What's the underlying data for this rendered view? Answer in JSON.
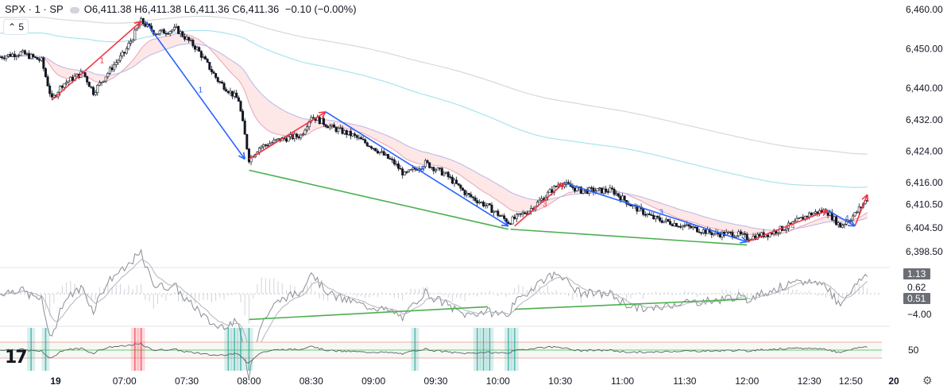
{
  "header": {
    "symbol": "SPX · 1 · SP",
    "open_label": "O",
    "open": "6,411.38",
    "high_label": "H",
    "high": "6,411.38",
    "low_label": "L",
    "low": "6,411.36",
    "close_label": "C",
    "close": "6,411.36",
    "change": "−0.10 (−0.00%)"
  },
  "interval_button": "5",
  "logo": "17",
  "icons": [
    "eye-icon",
    "chevron-up-icon",
    "gear-icon",
    "tradingview-logo-icon"
  ],
  "colors": {
    "bull_arrow": "#f23645",
    "bear_arrow": "#2962ff",
    "divergence": "#4caf50",
    "ema_cloud": "#fde4e4",
    "ema_blue": "#a7e3f0",
    "ema_gray": "#d8d8d8"
  },
  "chart_data": [
    {
      "type": "candlestick",
      "title": "SPX · 1 · SP",
      "y_ticks": [
        "6,460.00",
        "6,450.00",
        "6,440.00",
        "6,432.00",
        "6,424.00",
        "6,416.00",
        "6,410.50",
        "6,404.50",
        "6,398.50"
      ],
      "x_ticks": [
        "19",
        "07:00",
        "07:30",
        "08:00",
        "08:30",
        "09:00",
        "09:30",
        "10:00",
        "10:30",
        "11:00",
        "11:30",
        "12:00",
        "12:30",
        "12:50",
        "20"
      ],
      "price_path": [
        [
          "06:00",
          6448
        ],
        [
          "06:10",
          6449
        ],
        [
          "06:20",
          6447
        ],
        [
          "06:25",
          6437
        ],
        [
          "06:30",
          6441
        ],
        [
          "06:40",
          6444
        ],
        [
          "06:45",
          6439
        ],
        [
          "06:55",
          6446
        ],
        [
          "07:00",
          6449
        ],
        [
          "07:08",
          6457
        ],
        [
          "07:15",
          6454
        ],
        [
          "07:25",
          6455
        ],
        [
          "07:35",
          6450
        ],
        [
          "07:45",
          6442
        ],
        [
          "07:55",
          6437
        ],
        [
          "08:00",
          6422
        ],
        [
          "08:05",
          6425
        ],
        [
          "08:15",
          6427
        ],
        [
          "08:25",
          6428
        ],
        [
          "08:30",
          6433
        ],
        [
          "08:40",
          6430
        ],
        [
          "08:50",
          6428
        ],
        [
          "09:00",
          6425
        ],
        [
          "09:10",
          6421
        ],
        [
          "09:15",
          6418
        ],
        [
          "09:25",
          6421
        ],
        [
          "09:35",
          6418
        ],
        [
          "09:45",
          6413
        ],
        [
          "09:55",
          6410
        ],
        [
          "10:05",
          6406
        ],
        [
          "10:15",
          6409
        ],
        [
          "10:30",
          6416
        ],
        [
          "10:40",
          6414
        ],
        [
          "10:55",
          6414
        ],
        [
          "11:05",
          6410
        ],
        [
          "11:15",
          6407
        ],
        [
          "11:30",
          6405
        ],
        [
          "11:45",
          6403
        ],
        [
          "11:55",
          6403
        ],
        [
          "12:00",
          6402
        ],
        [
          "12:10",
          6403
        ],
        [
          "12:20",
          6405
        ],
        [
          "12:30",
          6408
        ],
        [
          "12:38",
          6409
        ],
        [
          "12:45",
          6405
        ],
        [
          "12:52",
          6408
        ],
        [
          "12:58",
          6412
        ]
      ],
      "wave_arrows": [
        {
          "label": "1",
          "direction": "up",
          "from": [
            "06:25",
            6437
          ],
          "to": [
            "07:08",
            6457
          ]
        },
        {
          "label": "1",
          "direction": "down",
          "from": [
            "07:10",
            6457
          ],
          "to": [
            "07:58",
            6422
          ]
        },
        {
          "label": "1",
          "direction": "up",
          "from": [
            "08:00",
            6422
          ],
          "to": [
            "08:37",
            6434
          ]
        },
        {
          "label": "3",
          "direction": "down",
          "from": [
            "08:37",
            6434
          ],
          "to": [
            "10:05",
            6405
          ]
        },
        {
          "label": "3",
          "direction": "up",
          "from": [
            "10:08",
            6405
          ],
          "to": [
            "10:32",
            6416
          ]
        },
        {
          "label": "3",
          "direction": "down",
          "from": [
            "10:32",
            6416
          ],
          "to": [
            "12:00",
            6401
          ]
        },
        {
          "label": "4",
          "direction": "up",
          "from": [
            "12:00",
            6401
          ],
          "to": [
            "12:39",
            6409
          ]
        },
        {
          "label": "4",
          "direction": "down",
          "from": [
            "12:39",
            6409
          ],
          "to": [
            "12:52",
            6405
          ]
        },
        {
          "label": "",
          "direction": "up",
          "from": [
            "12:52",
            6405
          ],
          "to": [
            "12:58",
            6413
          ]
        }
      ],
      "divergence_lines": [
        {
          "from": [
            "08:00",
            6420
          ],
          "to": [
            "10:05",
            6405
          ]
        },
        {
          "from": [
            "10:06",
            6405
          ],
          "to": [
            "12:00",
            6401
          ]
        }
      ]
    },
    {
      "type": "line",
      "title": "",
      "axis_labels": [
        "1.13",
        "0.62",
        "0.51",
        "−4.00"
      ],
      "divergence_lines": [
        {
          "from": [
            "08:00",
            -3.8
          ],
          "to": [
            "09:55",
            -1.8
          ]
        },
        {
          "from": [
            "10:08",
            -2.2
          ],
          "to": [
            "12:00",
            -0.6
          ]
        }
      ]
    },
    {
      "type": "line",
      "title": "",
      "axis_labels": [
        "50"
      ],
      "upper_band": 70,
      "lower_band": 30,
      "highlight_zones": [
        {
          "time": "06:15",
          "color": "green"
        },
        {
          "time": "06:22",
          "color": "green"
        },
        {
          "time": "07:05",
          "color": "red"
        },
        {
          "time": "07:08",
          "color": "red"
        },
        {
          "time": "07:50",
          "color": "green"
        },
        {
          "time": "07:53",
          "color": "green"
        },
        {
          "time": "07:56",
          "color": "green"
        },
        {
          "time": "08:00",
          "color": "green"
        },
        {
          "time": "09:20",
          "color": "green"
        },
        {
          "time": "09:50",
          "color": "green"
        },
        {
          "time": "09:53",
          "color": "green"
        },
        {
          "time": "09:56",
          "color": "green"
        },
        {
          "time": "10:05",
          "color": "green"
        },
        {
          "time": "10:08",
          "color": "green"
        }
      ]
    }
  ]
}
